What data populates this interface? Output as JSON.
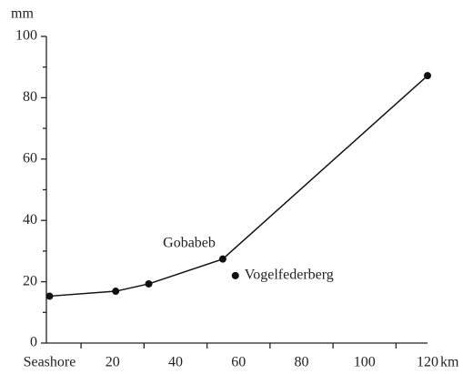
{
  "chart_data": {
    "type": "line",
    "y_label": "mm",
    "x_label": "km",
    "xlim": [
      -1,
      120
    ],
    "ylim": [
      0,
      100
    ],
    "xticks": [
      {
        "value": 0,
        "label": "Seashore"
      },
      20,
      40,
      60,
      80,
      100,
      120
    ],
    "xminor_ticks": [
      10,
      30,
      50,
      70,
      90,
      110
    ],
    "yticks": [
      0,
      20,
      40,
      60,
      80,
      100
    ],
    "yminor_ticks": [
      10,
      30,
      50,
      70,
      90
    ],
    "series": [
      {
        "color": "#111111",
        "connected": true,
        "x": [
          0,
          21,
          31.5,
          55,
          120
        ],
        "values": [
          15.3,
          16.9,
          19.3,
          27.4,
          87.2
        ],
        "point_labels": [
          null,
          null,
          null,
          "Gobabeb",
          null
        ]
      },
      {
        "color": "#111111",
        "connected": false,
        "x": [
          59
        ],
        "values": [
          22
        ],
        "point_labels": [
          "Vogelfederberg"
        ]
      }
    ]
  }
}
